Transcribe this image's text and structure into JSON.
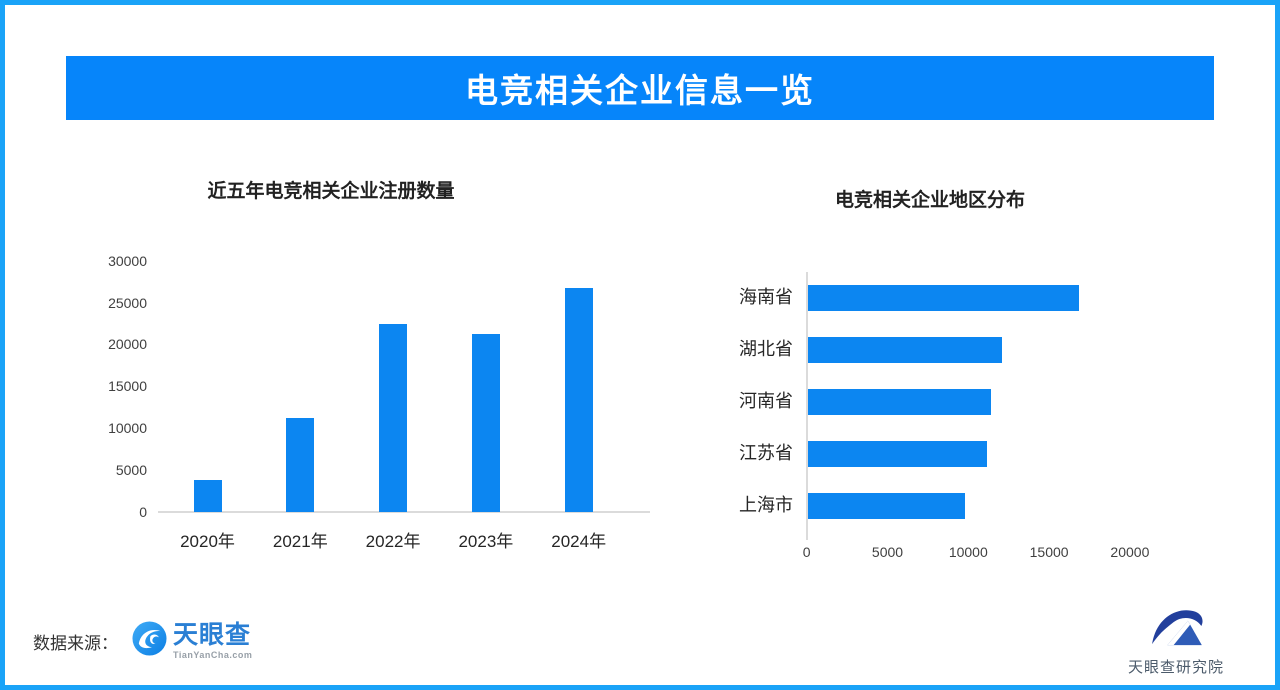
{
  "banner": {
    "title": "电竞相关企业信息一览"
  },
  "colors": {
    "frame_border": "#1AA3F8",
    "banner_bg": "#0685FA",
    "bar_fill": "#0C86F1",
    "tyc_blue": "#2A7FD4",
    "research_navy": "#223F9C",
    "research_blue": "#2F5CB7"
  },
  "chart_data": [
    {
      "type": "bar",
      "orientation": "vertical",
      "title": "近五年电竞相关企业注册数量",
      "categories": [
        "2020年",
        "2021年",
        "2022年",
        "2023年",
        "2024年"
      ],
      "values": [
        3800,
        11200,
        22400,
        21200,
        26700
      ],
      "xlabel": "",
      "ylabel": "",
      "ylim": [
        0,
        30000
      ],
      "yticks": [
        0,
        5000,
        10000,
        15000,
        20000,
        25000,
        30000
      ],
      "grid": false,
      "legend": "none"
    },
    {
      "type": "bar",
      "orientation": "horizontal",
      "title": "电竞相关企业地区分布",
      "categories": [
        "海南省",
        "湖北省",
        "河南省",
        "江苏省",
        "上海市"
      ],
      "values": [
        16800,
        12000,
        11300,
        11100,
        9700
      ],
      "xlabel": "",
      "ylabel": "",
      "xlim": [
        0,
        20000
      ],
      "xticks": [
        0,
        5000,
        10000,
        15000,
        20000
      ],
      "grid": false,
      "legend": "none"
    }
  ],
  "footer": {
    "source_label": "数据来源：",
    "tyc_logo_name": "天眼查",
    "tyc_logo_sub": "TianYanCha.com",
    "research_logo_text": "天眼查研究院"
  }
}
